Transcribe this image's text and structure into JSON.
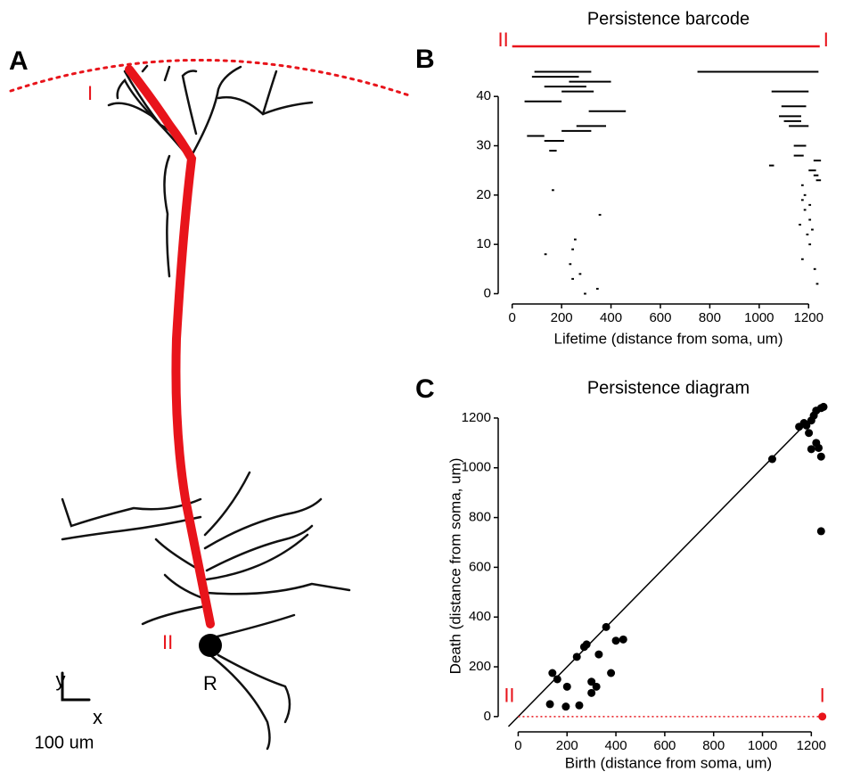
{
  "panel_labels": [
    "A",
    "B",
    "C"
  ],
  "neuron": {
    "apical_label": "I",
    "soma_label": "II",
    "root_label": "R",
    "axis_y": "y",
    "axis_x": "x",
    "scale_bar": "100 um"
  },
  "chart_data": [
    {
      "type": "barcode",
      "title": "Persistence barcode",
      "x_label": "Lifetime (distance from soma, um)",
      "color": "#000000",
      "xlim": [
        -35,
        1300
      ],
      "xticks": [
        0,
        200,
        400,
        600,
        800,
        1000,
        1200
      ],
      "ylim": [
        -1,
        46
      ],
      "yticks": [
        0,
        10,
        20,
        30,
        40
      ],
      "highlight": {
        "start": 0,
        "end": 1245,
        "color": "#e8141b",
        "labels": [
          "II",
          "I"
        ]
      },
      "bars": [
        {
          "start": 90,
          "end": 320,
          "y": 45
        },
        {
          "start": 80,
          "end": 270,
          "y": 44
        },
        {
          "start": 230,
          "end": 400,
          "y": 43
        },
        {
          "start": 130,
          "end": 300,
          "y": 42
        },
        {
          "start": 200,
          "end": 330,
          "y": 41
        },
        {
          "start": 50,
          "end": 200,
          "y": 39
        },
        {
          "start": 310,
          "end": 460,
          "y": 37
        },
        {
          "start": 260,
          "end": 380,
          "y": 34
        },
        {
          "start": 200,
          "end": 320,
          "y": 33
        },
        {
          "start": 60,
          "end": 130,
          "y": 32
        },
        {
          "start": 130,
          "end": 210,
          "y": 31
        },
        {
          "start": 150,
          "end": 180,
          "y": 29
        },
        {
          "start": 160,
          "end": 170,
          "y": 21
        },
        {
          "start": 350,
          "end": 360,
          "y": 16
        },
        {
          "start": 250,
          "end": 260,
          "y": 11
        },
        {
          "start": 240,
          "end": 250,
          "y": 9
        },
        {
          "start": 130,
          "end": 140,
          "y": 8
        },
        {
          "start": 230,
          "end": 240,
          "y": 6
        },
        {
          "start": 270,
          "end": 280,
          "y": 4
        },
        {
          "start": 240,
          "end": 250,
          "y": 3
        },
        {
          "start": 340,
          "end": 350,
          "y": 1
        },
        {
          "start": 290,
          "end": 300,
          "y": 0
        },
        {
          "start": 750,
          "end": 1240,
          "y": 45
        },
        {
          "start": 1050,
          "end": 1200,
          "y": 41
        },
        {
          "start": 1090,
          "end": 1190,
          "y": 38
        },
        {
          "start": 1080,
          "end": 1170,
          "y": 36
        },
        {
          "start": 1100,
          "end": 1170,
          "y": 35
        },
        {
          "start": 1120,
          "end": 1200,
          "y": 34
        },
        {
          "start": 1140,
          "end": 1190,
          "y": 30
        },
        {
          "start": 1140,
          "end": 1180,
          "y": 28
        },
        {
          "start": 1220,
          "end": 1250,
          "y": 27
        },
        {
          "start": 1040,
          "end": 1060,
          "y": 26
        },
        {
          "start": 1200,
          "end": 1230,
          "y": 25
        },
        {
          "start": 1220,
          "end": 1240,
          "y": 24
        },
        {
          "start": 1230,
          "end": 1250,
          "y": 23
        },
        {
          "start": 1170,
          "end": 1180,
          "y": 22
        },
        {
          "start": 1180,
          "end": 1190,
          "y": 20
        },
        {
          "start": 1170,
          "end": 1180,
          "y": 19
        },
        {
          "start": 1200,
          "end": 1210,
          "y": 18
        },
        {
          "start": 1180,
          "end": 1190,
          "y": 17
        },
        {
          "start": 1200,
          "end": 1210,
          "y": 15
        },
        {
          "start": 1160,
          "end": 1170,
          "y": 14
        },
        {
          "start": 1210,
          "end": 1220,
          "y": 13
        },
        {
          "start": 1190,
          "end": 1200,
          "y": 12
        },
        {
          "start": 1200,
          "end": 1210,
          "y": 10
        },
        {
          "start": 1170,
          "end": 1180,
          "y": 7
        },
        {
          "start": 1220,
          "end": 1230,
          "y": 5
        },
        {
          "start": 1230,
          "end": 1240,
          "y": 2
        }
      ]
    },
    {
      "type": "scatter",
      "title": "Persistence diagram",
      "x_label": "Birth (distance from soma, um)",
      "y_label": "Death (distance from soma, um)",
      "color": "#000000",
      "diagonal": true,
      "xlim": [
        -60,
        1290
      ],
      "xticks": [
        0,
        200,
        400,
        600,
        800,
        1000,
        1200
      ],
      "ylim": [
        -40,
        1250
      ],
      "yticks": [
        0,
        200,
        400,
        600,
        800,
        1000,
        1200
      ],
      "x": [
        130,
        140,
        160,
        195,
        200,
        240,
        250,
        270,
        280,
        300,
        300,
        320,
        330,
        360,
        380,
        400,
        430,
        1040,
        1150,
        1170,
        1180,
        1190,
        1200,
        1200,
        1210,
        1220,
        1220,
        1230,
        1240,
        1240,
        1240,
        1250
      ],
      "values": [
        50,
        175,
        150,
        40,
        120,
        240,
        45,
        280,
        290,
        95,
        140,
        120,
        250,
        360,
        175,
        305,
        310,
        1035,
        1165,
        1180,
        1170,
        1140,
        1075,
        1190,
        1210,
        1100,
        1230,
        1080,
        1240,
        1045,
        745,
        1245
      ],
      "baseline_point": {
        "birth": 1245,
        "death": 0,
        "color": "#e8141b",
        "labels": [
          "II",
          "I"
        ]
      }
    }
  ]
}
